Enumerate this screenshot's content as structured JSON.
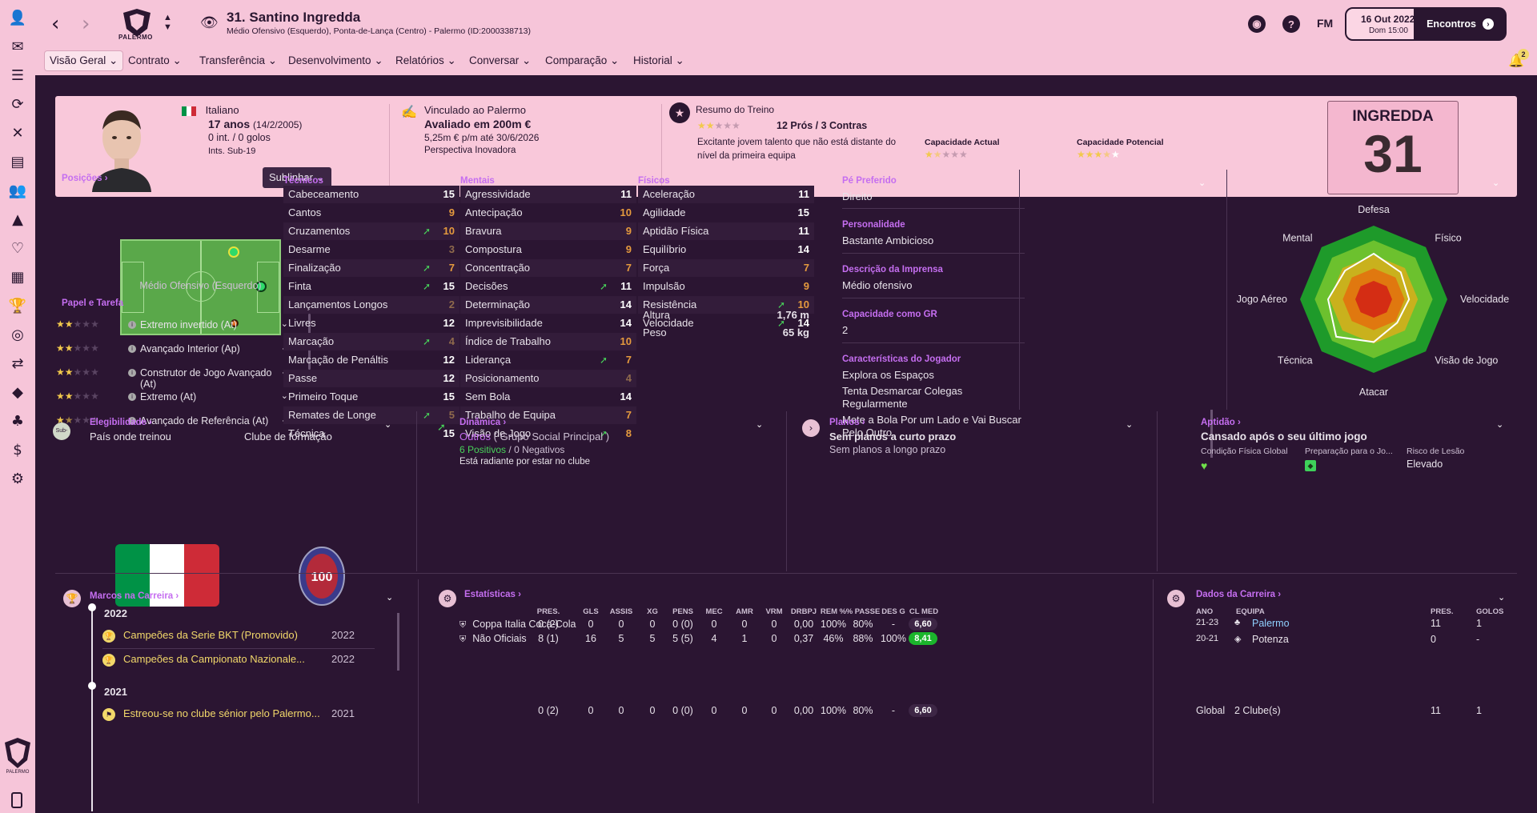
{
  "topbar": {
    "club_name": "PALERMO",
    "player_title": "31. Santino Ingredda",
    "player_subtitle": "Médio Ofensivo (Esquerdo), Ponta-de-Lança (Centro) - Palermo (ID:2000338713)",
    "fm_label": "FM",
    "date": "16 Out 2022",
    "time": "Dom 15:00",
    "continue_label": "Encontros"
  },
  "tabs": [
    "Visão Geral",
    "Contrato",
    "Transferência",
    "Desenvolvimento",
    "Relatórios",
    "Conversar",
    "Comparação",
    "Historial"
  ],
  "notifications_count": "2",
  "header": {
    "nationality": "Italiano",
    "age": "17 anos",
    "dob": "(14/2/2005)",
    "caps": "0 int. / 0 golos",
    "youth_caps": "Ints. Sub-19",
    "contract_club": "Vinculado ao Palermo",
    "value": "Avaliado em 200m €",
    "wage": "5,25m € p/m até 30/6/2026",
    "perspective": "Perspectiva Inovadora",
    "training_title": "Resumo do Treino",
    "pros_cons": "12 Prós / 3 Contras",
    "training_desc": "Excitante jovem talento que não está distante do nível da primeira equipa",
    "current_ability_label": "Capacidade Actual",
    "potential_ability_label": "Capacidade Potencial",
    "training_stars": 2,
    "current_ability_stars": 1.5,
    "potential_ability_stars": 3.5,
    "shirt_name": "INGREDDA",
    "shirt_number": "31"
  },
  "positions": {
    "title": "Posições",
    "highlight_label": "Sublinhar",
    "position_label": "Médio Ofensivo (Esquerdo)",
    "roles_title": "Papel e Tarefa",
    "roles": [
      {
        "name": "Extremo invertido (At)",
        "stars": 2
      },
      {
        "name": "Avançado Interior (Ap)",
        "stars": 2
      },
      {
        "name": "Construtor de Jogo Avançado (At)",
        "stars": 2
      },
      {
        "name": "Extremo (At)",
        "stars": 2
      },
      {
        "name": "Avançado de Referência (At)",
        "stars": 1.5
      }
    ]
  },
  "attributes": {
    "technical_title": "Técnicos",
    "mental_title": "Mentais",
    "physical_title": "Físicos",
    "technical": [
      {
        "name": "Cabeceamento",
        "value": "15",
        "up": false
      },
      {
        "name": "Cantos",
        "value": "9",
        "up": false
      },
      {
        "name": "Cruzamentos",
        "value": "10",
        "up": true
      },
      {
        "name": "Desarme",
        "value": "3",
        "up": false
      },
      {
        "name": "Finalização",
        "value": "7",
        "up": true
      },
      {
        "name": "Finta",
        "value": "15",
        "up": true
      },
      {
        "name": "Lançamentos Longos",
        "value": "2",
        "up": false
      },
      {
        "name": "Livres",
        "value": "12",
        "up": false
      },
      {
        "name": "Marcação",
        "value": "4",
        "up": true
      },
      {
        "name": "Marcação de Penáltis",
        "value": "12",
        "up": false
      },
      {
        "name": "Passe",
        "value": "12",
        "up": false
      },
      {
        "name": "Primeiro Toque",
        "value": "15",
        "up": false
      },
      {
        "name": "Remates de Longe",
        "value": "5",
        "up": true
      },
      {
        "name": "Técnica",
        "value": "15",
        "up": false
      }
    ],
    "mental": [
      {
        "name": "Agressividade",
        "value": "11",
        "up": false
      },
      {
        "name": "Antecipação",
        "value": "10",
        "up": false
      },
      {
        "name": "Bravura",
        "value": "9",
        "up": false
      },
      {
        "name": "Compostura",
        "value": "9",
        "up": false
      },
      {
        "name": "Concentração",
        "value": "7",
        "up": false
      },
      {
        "name": "Decisões",
        "value": "11",
        "up": true
      },
      {
        "name": "Determinação",
        "value": "14",
        "up": false
      },
      {
        "name": "Imprevisibilidade",
        "value": "14",
        "up": false
      },
      {
        "name": "Índice de Trabalho",
        "value": "10",
        "up": false
      },
      {
        "name": "Liderança",
        "value": "7",
        "up": true
      },
      {
        "name": "Posicionamento",
        "value": "4",
        "up": false
      },
      {
        "name": "Sem Bola",
        "value": "14",
        "up": false
      },
      {
        "name": "Trabalho de Equipa",
        "value": "7",
        "up": false
      },
      {
        "name": "Visão de Jogo",
        "value": "8",
        "up": true
      }
    ],
    "physical": [
      {
        "name": "Aceleração",
        "value": "11",
        "up": false
      },
      {
        "name": "Agilidade",
        "value": "15",
        "up": false
      },
      {
        "name": "Aptidão Física",
        "value": "11",
        "up": false
      },
      {
        "name": "Equilíbrio",
        "value": "14",
        "up": false
      },
      {
        "name": "Força",
        "value": "7",
        "up": false
      },
      {
        "name": "Impulsão",
        "value": "9",
        "up": false
      },
      {
        "name": "Resistência",
        "value": "10",
        "up": true
      },
      {
        "name": "Velocidade",
        "value": "14",
        "up": true
      }
    ],
    "height_label": "Altura",
    "height": "1,76 m",
    "weight_label": "Peso",
    "weight": "65 kg"
  },
  "info": {
    "foot_label": "Pé Preferido",
    "foot": "Direito",
    "personality_label": "Personalidade",
    "personality": "Bastante Ambicioso",
    "media_label": "Descrição da Imprensa",
    "media": "Médio ofensivo",
    "gk_label": "Capacidade como GR",
    "gk": "2",
    "traits_label": "Características do Jogador",
    "traits": [
      "Explora os Espaços",
      "Tenta Desmarcar Colegas Regularmente",
      "Mete a Bola Por um Lado e Vai Buscar Pelo Outro"
    ]
  },
  "radar": {
    "labels": [
      "Defesa",
      "Físico",
      "Velocidade",
      "Visão de Jogo",
      "Atacar",
      "Técnica",
      "Jogo Aéreo",
      "Mental"
    ]
  },
  "eligibility": {
    "title": "Elegibilidade",
    "badge": "Sub-",
    "trained_label": "País onde treinou",
    "club_label": "Clube de formação"
  },
  "dynamics": {
    "title": "Dinâmica",
    "group": "Outros",
    "group_detail": "( Grupo Social Principal )",
    "positives": "6 Positivos",
    "slash": "/",
    "negatives": "0 Negativos",
    "mood": "Está radiante por estar no clube"
  },
  "plans": {
    "title": "Planos",
    "short": "Sem planos a curto prazo",
    "long": "Sem planos a longo prazo"
  },
  "fitness": {
    "title": "Aptidão",
    "status": "Cansado após o seu último jogo",
    "cond_label": "Condição Física Global",
    "prep_label": "Preparação para o Jo...",
    "risk_label": "Risco de Lesão",
    "risk": "Elevado"
  },
  "milestones": {
    "title": "Marcos na Carreira",
    "year1": "2022",
    "year2": "2021",
    "items": [
      {
        "text": "Campeões da Serie BKT (Promovido)",
        "year": "2022"
      },
      {
        "text": "Campeões da Campionato Nazionale...",
        "year": "2022"
      },
      {
        "text": "Estreou-se no clube sénior pelo Palermo...",
        "year": "2021"
      }
    ]
  },
  "stats": {
    "title": "Estatísticas",
    "headers": [
      "PRES.",
      "GLS",
      "ASSIS",
      "XG",
      "PENS",
      "MEC",
      "AMR",
      "VRM",
      "DRBPJ",
      "REM %",
      "% PASSE",
      "DES G",
      "CL MED"
    ],
    "rows": [
      {
        "comp": "Coppa Italia Coca-Cola",
        "values": [
          "0 (2)",
          "0",
          "0",
          "0",
          "0 (0)",
          "0",
          "0",
          "0",
          "0,00",
          "100%",
          "80%",
          "-"
        ],
        "rating": "6,60"
      },
      {
        "comp": "Não Oficiais",
        "values": [
          "8 (1)",
          "16",
          "5",
          "5",
          "5 (5)",
          "4",
          "1",
          "0",
          "0,37",
          "46%",
          "88%",
          "100%"
        ],
        "rating": "8,41"
      }
    ],
    "total": {
      "values": [
        "0 (2)",
        "0",
        "0",
        "0",
        "0 (0)",
        "0",
        "0",
        "0",
        "0,00",
        "100%",
        "80%",
        "-"
      ],
      "rating": "6,60"
    }
  },
  "career": {
    "title": "Dados da Carreira",
    "headers": [
      "ANO",
      "EQUIPA",
      "PRES.",
      "GOLOS"
    ],
    "rows": [
      {
        "year": "21-23",
        "team": "Palermo",
        "apps": "11",
        "goals": "1"
      },
      {
        "year": "20-21",
        "team": "Potenza",
        "apps": "0",
        "goals": "-"
      }
    ],
    "total_label": "Global",
    "total_clubs": "2 Clube(s)",
    "total_apps": "11",
    "total_goals": "1"
  },
  "colors": {
    "accent": "#c56ef0",
    "header_bg": "#f9c8da",
    "panel_bg": "#2b1532",
    "positive": "#48d35a"
  }
}
